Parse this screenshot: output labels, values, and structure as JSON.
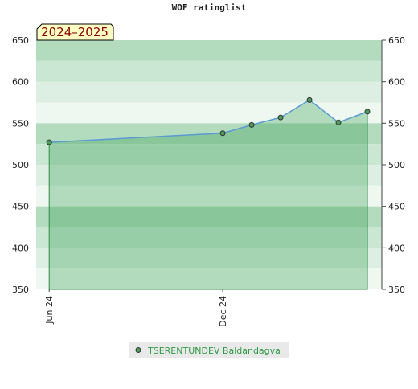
{
  "chart_data": {
    "type": "line",
    "title": "WOF ratinglist",
    "annotation": "2024–2025",
    "x": [
      0,
      6,
      7,
      8,
      9,
      10,
      11
    ],
    "xlim": [
      -0.45,
      11.5
    ],
    "xticks": [
      {
        "value": 0,
        "label": "Jun 24"
      },
      {
        "value": 6,
        "label": "Dec 24"
      }
    ],
    "series": [
      {
        "name": "TSERENTUNDEV Baldandagva",
        "color": "#5b9bd5",
        "values": [
          527,
          538,
          548,
          557,
          578,
          551,
          564
        ]
      }
    ],
    "ylim": [
      350,
      650
    ],
    "yticks": [
      350,
      400,
      450,
      500,
      550,
      600,
      650
    ],
    "grid": false,
    "legend": "bottom"
  }
}
